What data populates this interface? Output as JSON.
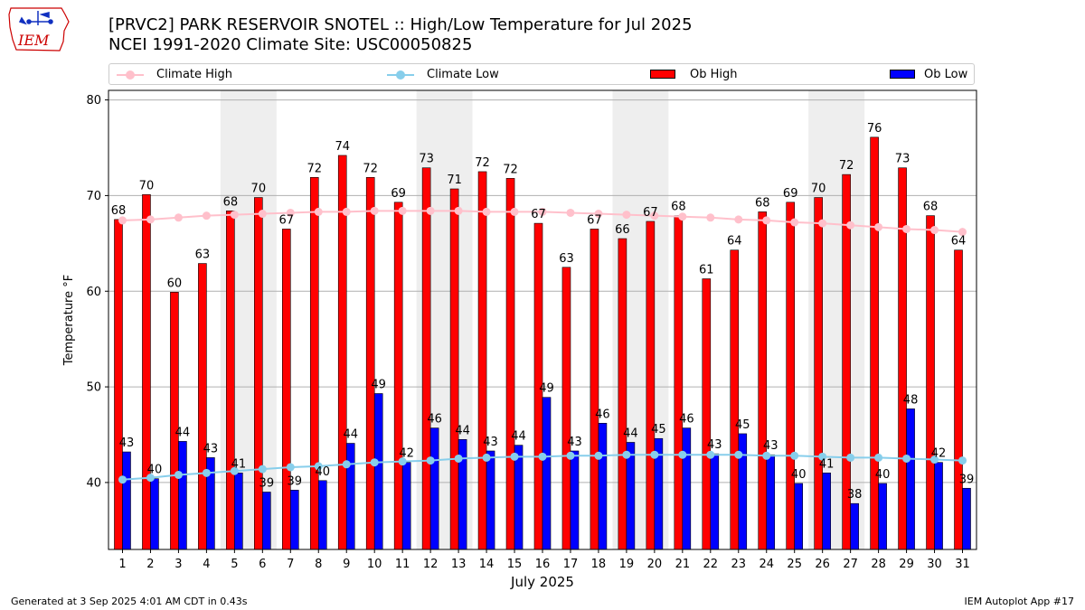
{
  "logo": {
    "text": "IEM",
    "icon": "iowa-state-outline-icon",
    "color": "#cc0000"
  },
  "header": {
    "title_line1": "[PRVC2] PARK RESERVOIR SNOTEL :: High/Low Temperature for Jul 2025",
    "title_line2": "NCEI 1991-2020 Climate Site: USC00050825"
  },
  "legend": {
    "placement": "top-above-plot",
    "items": [
      {
        "label": "Climate High",
        "color": "#ffc0cb",
        "kind": "line-marker"
      },
      {
        "label": "Climate Low",
        "color": "#87ceeb",
        "kind": "line-marker"
      },
      {
        "label": "Ob High",
        "color": "#ff0000",
        "kind": "bar"
      },
      {
        "label": "Ob Low",
        "color": "#0000ff",
        "kind": "bar"
      }
    ]
  },
  "chart_data": {
    "type": "bar",
    "title": "[PRVC2] PARK RESERVOIR SNOTEL :: High/Low Temperature for Jul 2025",
    "subtitle": "NCEI 1991-2020 Climate Site: USC00050825",
    "xlabel": "July 2025",
    "ylabel": "Temperature °F",
    "ylim": [
      33,
      81
    ],
    "yticks": [
      40,
      50,
      60,
      70,
      80
    ],
    "grid": "y-major",
    "categories": [
      "1",
      "2",
      "3",
      "4",
      "5",
      "6",
      "7",
      "8",
      "9",
      "10",
      "11",
      "12",
      "13",
      "14",
      "15",
      "16",
      "17",
      "18",
      "19",
      "20",
      "21",
      "22",
      "23",
      "24",
      "25",
      "26",
      "27",
      "28",
      "29",
      "30",
      "31"
    ],
    "weekend_shading": [
      [
        5,
        6
      ],
      [
        12,
        13
      ],
      [
        19,
        20
      ],
      [
        26,
        27
      ]
    ],
    "shade_color": "#eeeeee",
    "series": [
      {
        "name": "Ob High",
        "kind": "bar",
        "color": "#ff0000",
        "values": [
          67.5,
          70.1,
          59.9,
          62.9,
          68.4,
          69.8,
          66.5,
          71.9,
          74.2,
          71.9,
          69.3,
          72.9,
          70.7,
          72.5,
          71.8,
          67.1,
          62.5,
          66.5,
          65.5,
          67.3,
          67.9,
          61.3,
          64.3,
          68.3,
          69.3,
          69.8,
          72.2,
          76.1,
          72.9,
          67.9,
          64.3
        ],
        "labels": [
          "68",
          "70",
          "60",
          "63",
          "68",
          "70",
          "67",
          "72",
          "74",
          "72",
          "69",
          "73",
          "71",
          "72",
          "72",
          "67",
          "63",
          "67",
          "66",
          "67",
          "68",
          "61",
          "64",
          "68",
          "69",
          "70",
          "72",
          "76",
          "73",
          "68",
          "64"
        ]
      },
      {
        "name": "Ob Low",
        "kind": "bar",
        "color": "#0000ff",
        "values": [
          43.2,
          40.4,
          44.3,
          42.6,
          41.0,
          39.0,
          39.2,
          40.2,
          44.1,
          49.3,
          42.1,
          45.7,
          44.5,
          43.3,
          43.9,
          48.9,
          43.3,
          46.2,
          44.2,
          44.6,
          45.7,
          43.0,
          45.1,
          42.9,
          39.9,
          41.0,
          37.8,
          39.9,
          47.7,
          42.1,
          39.4
        ],
        "labels": [
          "43",
          "40",
          "44",
          "43",
          "41",
          "39",
          "39",
          "40",
          "44",
          "49",
          "42",
          "46",
          "44",
          "43",
          "44",
          "49",
          "43",
          "46",
          "44",
          "45",
          "46",
          "43",
          "45",
          "43",
          "40",
          "41",
          "38",
          "40",
          "48",
          "42",
          "39"
        ]
      },
      {
        "name": "Climate High",
        "kind": "line",
        "color": "#ffc0cb",
        "values": [
          67.4,
          67.5,
          67.7,
          67.9,
          68.0,
          68.1,
          68.2,
          68.3,
          68.3,
          68.4,
          68.4,
          68.4,
          68.4,
          68.3,
          68.3,
          68.3,
          68.2,
          68.1,
          68.0,
          67.9,
          67.8,
          67.7,
          67.5,
          67.4,
          67.2,
          67.1,
          66.9,
          66.7,
          66.5,
          66.4,
          66.2
        ]
      },
      {
        "name": "Climate Low",
        "kind": "line",
        "color": "#87ceeb",
        "values": [
          40.3,
          40.5,
          40.8,
          41.0,
          41.2,
          41.4,
          41.6,
          41.7,
          41.9,
          42.1,
          42.2,
          42.3,
          42.5,
          42.6,
          42.7,
          42.7,
          42.8,
          42.8,
          42.9,
          42.9,
          42.9,
          42.9,
          42.9,
          42.8,
          42.8,
          42.7,
          42.6,
          42.6,
          42.5,
          42.4,
          42.3
        ]
      }
    ]
  },
  "footer": {
    "generated": "Generated at 3 Sep 2025 4:01 AM CDT in 0.43s",
    "app": "IEM Autoplot App #17"
  }
}
